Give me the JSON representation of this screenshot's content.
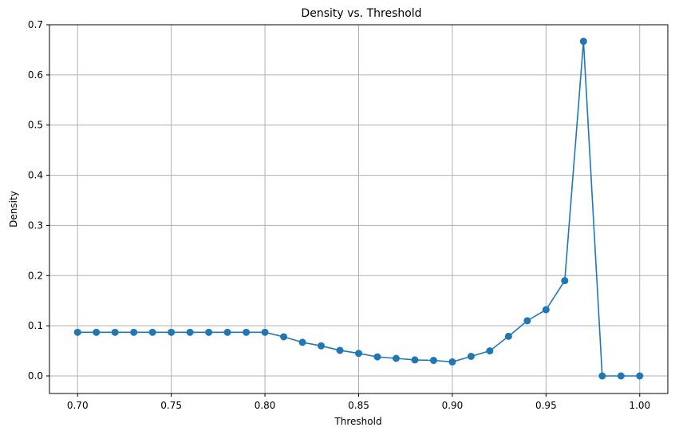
{
  "chart_data": {
    "type": "line",
    "title": "Density vs. Threshold",
    "xlabel": "Threshold",
    "ylabel": "Density",
    "xlim": [
      0.685,
      1.015
    ],
    "ylim": [
      -0.035,
      0.7
    ],
    "xticks": [
      0.7,
      0.75,
      0.8,
      0.85,
      0.9,
      0.95,
      1.0
    ],
    "xtick_labels": [
      "0.70",
      "0.75",
      "0.80",
      "0.85",
      "0.90",
      "0.95",
      "1.00"
    ],
    "yticks": [
      0.0,
      0.1,
      0.2,
      0.3,
      0.4,
      0.5,
      0.6,
      0.7
    ],
    "ytick_labels": [
      "0.0",
      "0.1",
      "0.2",
      "0.3",
      "0.4",
      "0.5",
      "0.6",
      "0.7"
    ],
    "grid": true,
    "marker": "circle",
    "color": "#1f77b4",
    "series": [
      {
        "x": [
          0.7,
          0.71,
          0.72,
          0.73,
          0.74,
          0.75,
          0.76,
          0.77,
          0.78,
          0.79,
          0.8,
          0.81,
          0.82,
          0.83,
          0.84,
          0.85,
          0.86,
          0.87,
          0.88,
          0.89,
          0.9,
          0.91,
          0.92,
          0.93,
          0.94,
          0.95,
          0.96,
          0.97,
          0.98,
          0.99,
          1.0
        ],
        "values": [
          0.087,
          0.087,
          0.087,
          0.087,
          0.087,
          0.087,
          0.087,
          0.087,
          0.087,
          0.087,
          0.087,
          0.078,
          0.067,
          0.06,
          0.051,
          0.045,
          0.038,
          0.035,
          0.032,
          0.031,
          0.028,
          0.039,
          0.05,
          0.079,
          0.11,
          0.132,
          0.19,
          0.667,
          0.0,
          0.0,
          0.0
        ]
      }
    ]
  }
}
